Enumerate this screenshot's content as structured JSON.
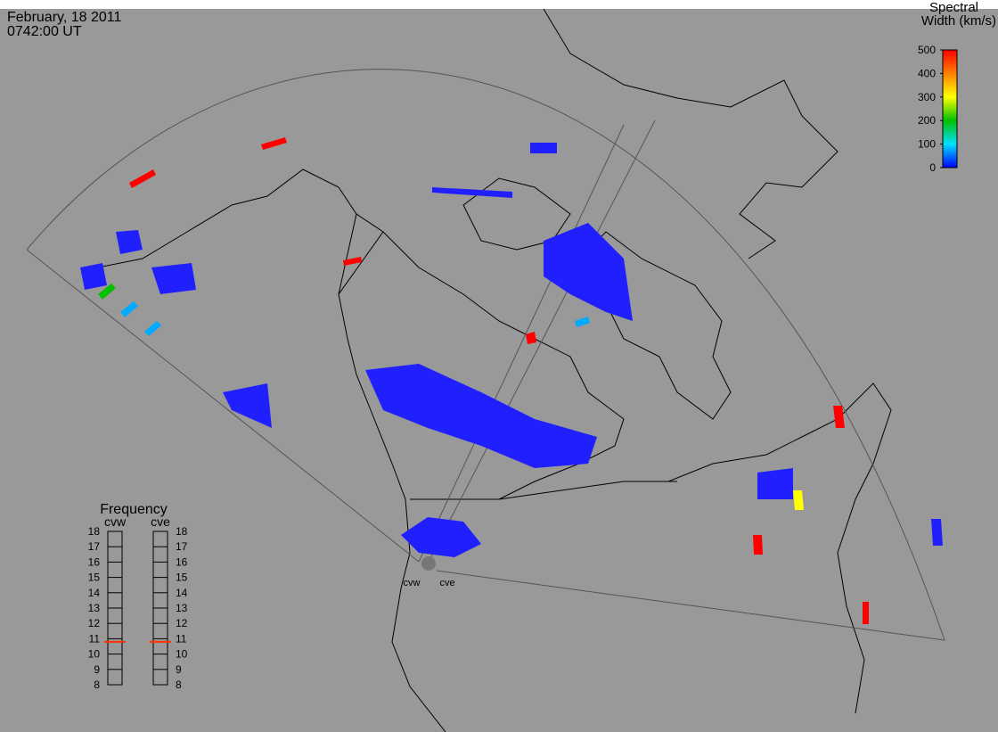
{
  "header": {
    "date": "February, 18 2011",
    "time": "0742:00 UT"
  },
  "colorbar": {
    "title_lines": [
      "Spectral",
      "Width (km/s)"
    ],
    "range": [
      0,
      500
    ],
    "ticks": [
      0,
      100,
      200,
      300,
      400,
      500
    ],
    "colors": [
      "#0000ff",
      "#00e0ff",
      "#00c000",
      "#ffff00",
      "#ff8000",
      "#ff0000"
    ]
  },
  "frequency": {
    "title": "Frequency",
    "range": [
      8,
      18
    ],
    "ticks": [
      8,
      9,
      10,
      11,
      12,
      13,
      14,
      15,
      16,
      17,
      18
    ],
    "marker_color": "#ff3000",
    "radars": [
      {
        "name": "cvw",
        "value": 10.8
      },
      {
        "name": "cve",
        "value": 10.8
      }
    ]
  },
  "map_labels": [
    "cvw",
    "cve"
  ]
}
